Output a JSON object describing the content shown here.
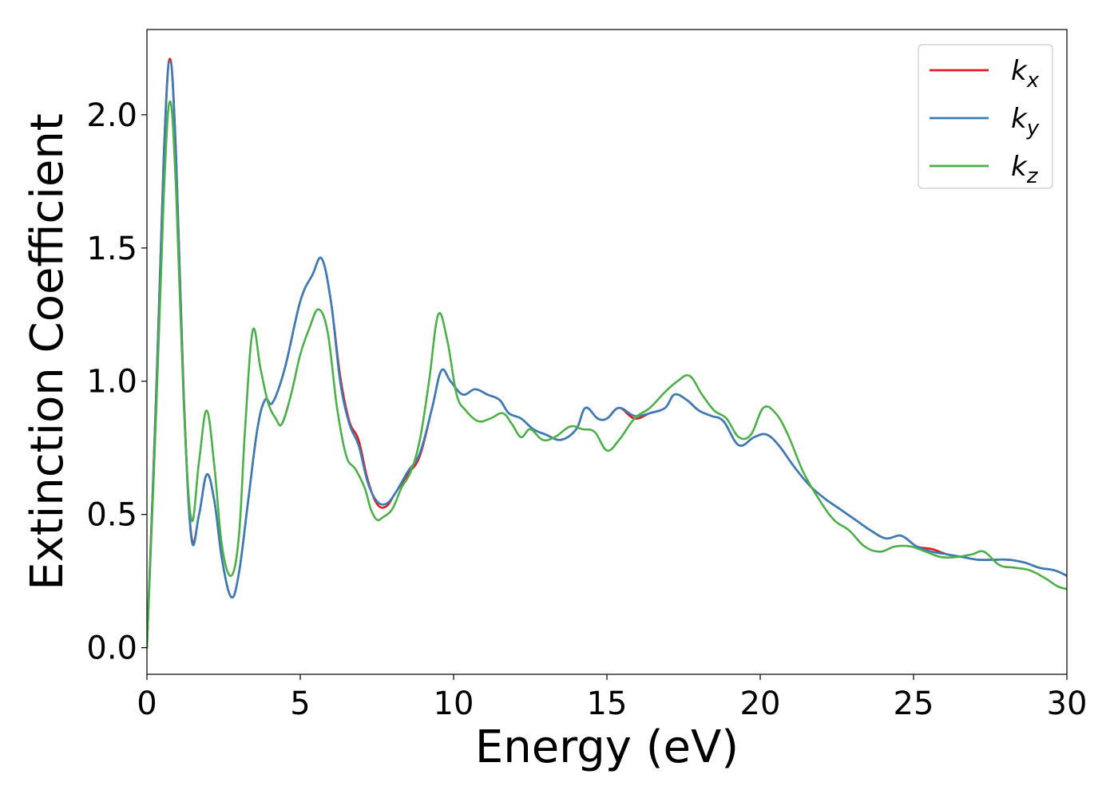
{
  "chart_data": {
    "type": "line",
    "title": "",
    "xlabel": "Energy (eV)",
    "ylabel": "Extinction Coefficient",
    "xlim": [
      0,
      30
    ],
    "ylim": [
      -0.1,
      2.32
    ],
    "xticks": [
      0,
      5,
      10,
      15,
      20,
      25,
      30
    ],
    "xtick_labels": [
      "0",
      "5",
      "10",
      "15",
      "20",
      "25",
      "30"
    ],
    "yticks": [
      0.0,
      0.5,
      1.0,
      1.5,
      2.0
    ],
    "ytick_labels": [
      "0.0",
      "0.5",
      "1.0",
      "1.5",
      "2.0"
    ],
    "grid": false,
    "legend_position": "top-right",
    "series": [
      {
        "name": "k",
        "subscript": "x",
        "color": "#e41a1c",
        "x": [
          0,
          0.3,
          0.55,
          0.75,
          0.95,
          1.2,
          1.45,
          1.7,
          1.95,
          2.2,
          2.45,
          2.75,
          3.0,
          3.3,
          3.6,
          3.85,
          4.1,
          4.5,
          5.0,
          5.4,
          5.7,
          6.0,
          6.3,
          6.6,
          6.9,
          7.2,
          7.5,
          7.8,
          8.1,
          8.5,
          8.9,
          9.3,
          9.6,
          9.9,
          10.3,
          10.7,
          11.1,
          11.5,
          11.8,
          12.2,
          12.6,
          13.0,
          13.5,
          14.0,
          14.3,
          14.7,
          15.0,
          15.4,
          15.9,
          16.4,
          16.9,
          17.2,
          17.6,
          18.0,
          18.4,
          18.8,
          19.3,
          19.8,
          20.2,
          20.6,
          21.1,
          21.6,
          22.1,
          22.6,
          23.1,
          23.6,
          24.1,
          24.6,
          25.1,
          25.6,
          26.1,
          26.6,
          27.1,
          27.6,
          28.1,
          28.6,
          29.1,
          29.6,
          30
        ],
        "y": [
          0.0,
          0.95,
          1.85,
          2.21,
          1.85,
          0.95,
          0.42,
          0.5,
          0.65,
          0.55,
          0.33,
          0.19,
          0.28,
          0.55,
          0.82,
          0.93,
          0.92,
          1.05,
          1.3,
          1.4,
          1.46,
          1.3,
          1.02,
          0.85,
          0.78,
          0.63,
          0.54,
          0.53,
          0.58,
          0.65,
          0.72,
          0.9,
          1.04,
          1.0,
          0.95,
          0.97,
          0.95,
          0.93,
          0.88,
          0.86,
          0.82,
          0.8,
          0.78,
          0.82,
          0.9,
          0.86,
          0.86,
          0.9,
          0.86,
          0.88,
          0.9,
          0.95,
          0.93,
          0.89,
          0.87,
          0.85,
          0.76,
          0.79,
          0.8,
          0.76,
          0.68,
          0.61,
          0.56,
          0.52,
          0.48,
          0.44,
          0.41,
          0.42,
          0.38,
          0.37,
          0.35,
          0.34,
          0.33,
          0.33,
          0.33,
          0.32,
          0.3,
          0.29,
          0.27
        ]
      },
      {
        "name": "k",
        "subscript": "y",
        "color": "#377eb8",
        "x": [
          0,
          0.3,
          0.55,
          0.75,
          0.95,
          1.2,
          1.45,
          1.7,
          1.95,
          2.2,
          2.45,
          2.75,
          3.0,
          3.3,
          3.6,
          3.85,
          4.1,
          4.5,
          5.0,
          5.4,
          5.7,
          6.0,
          6.3,
          6.6,
          6.9,
          7.2,
          7.5,
          7.8,
          8.1,
          8.5,
          8.9,
          9.3,
          9.6,
          9.9,
          10.3,
          10.7,
          11.1,
          11.5,
          11.8,
          12.2,
          12.6,
          13.0,
          13.5,
          14.0,
          14.3,
          14.7,
          15.0,
          15.4,
          15.9,
          16.4,
          16.9,
          17.2,
          17.6,
          18.0,
          18.4,
          18.8,
          19.3,
          19.8,
          20.2,
          20.6,
          21.1,
          21.6,
          22.1,
          22.6,
          23.1,
          23.6,
          24.1,
          24.6,
          25.1,
          25.6,
          26.1,
          26.6,
          27.1,
          27.6,
          28.1,
          28.6,
          29.1,
          29.6,
          30
        ],
        "y": [
          0.0,
          0.94,
          1.84,
          2.2,
          1.84,
          0.94,
          0.41,
          0.5,
          0.65,
          0.55,
          0.33,
          0.19,
          0.28,
          0.55,
          0.82,
          0.93,
          0.92,
          1.05,
          1.3,
          1.4,
          1.46,
          1.3,
          1.0,
          0.84,
          0.76,
          0.62,
          0.55,
          0.54,
          0.58,
          0.66,
          0.73,
          0.9,
          1.04,
          1.0,
          0.95,
          0.97,
          0.95,
          0.93,
          0.88,
          0.86,
          0.82,
          0.8,
          0.78,
          0.82,
          0.9,
          0.86,
          0.86,
          0.9,
          0.87,
          0.88,
          0.9,
          0.95,
          0.93,
          0.89,
          0.87,
          0.85,
          0.76,
          0.79,
          0.8,
          0.76,
          0.68,
          0.61,
          0.56,
          0.52,
          0.48,
          0.44,
          0.41,
          0.42,
          0.38,
          0.36,
          0.35,
          0.34,
          0.33,
          0.33,
          0.33,
          0.32,
          0.3,
          0.29,
          0.27
        ]
      },
      {
        "name": "k",
        "subscript": "z",
        "color": "#4daf4a",
        "x": [
          0,
          0.3,
          0.55,
          0.75,
          0.95,
          1.2,
          1.45,
          1.7,
          1.95,
          2.2,
          2.45,
          2.75,
          3.0,
          3.2,
          3.45,
          3.7,
          3.95,
          4.2,
          4.4,
          4.7,
          5.0,
          5.3,
          5.6,
          5.9,
          6.2,
          6.5,
          6.8,
          7.1,
          7.3,
          7.5,
          7.7,
          8.0,
          8.3,
          8.6,
          8.9,
          9.2,
          9.5,
          9.8,
          10.1,
          10.4,
          10.8,
          11.2,
          11.6,
          11.9,
          12.2,
          12.5,
          12.9,
          13.3,
          13.8,
          14.2,
          14.6,
          15.0,
          15.4,
          15.9,
          16.4,
          16.9,
          17.3,
          17.7,
          18.1,
          18.5,
          18.9,
          19.3,
          19.7,
          20.1,
          20.5,
          20.9,
          21.4,
          21.9,
          22.4,
          22.9,
          23.4,
          23.9,
          24.4,
          24.9,
          25.4,
          25.9,
          26.4,
          26.9,
          27.3,
          27.8,
          28.3,
          28.8,
          29.3,
          29.7,
          30
        ],
        "y": [
          0.0,
          0.88,
          1.7,
          2.05,
          1.72,
          0.92,
          0.48,
          0.7,
          0.89,
          0.68,
          0.38,
          0.27,
          0.42,
          0.82,
          1.19,
          1.05,
          0.92,
          0.86,
          0.84,
          0.95,
          1.1,
          1.2,
          1.27,
          1.18,
          0.9,
          0.72,
          0.67,
          0.6,
          0.52,
          0.48,
          0.49,
          0.52,
          0.6,
          0.66,
          0.78,
          1.0,
          1.25,
          1.15,
          0.95,
          0.89,
          0.85,
          0.86,
          0.88,
          0.84,
          0.79,
          0.82,
          0.78,
          0.79,
          0.83,
          0.82,
          0.81,
          0.74,
          0.78,
          0.86,
          0.9,
          0.96,
          1.0,
          1.02,
          0.95,
          0.89,
          0.86,
          0.79,
          0.8,
          0.9,
          0.88,
          0.8,
          0.66,
          0.56,
          0.48,
          0.44,
          0.38,
          0.36,
          0.38,
          0.38,
          0.36,
          0.34,
          0.34,
          0.35,
          0.36,
          0.31,
          0.3,
          0.29,
          0.26,
          0.23,
          0.22
        ]
      }
    ]
  }
}
